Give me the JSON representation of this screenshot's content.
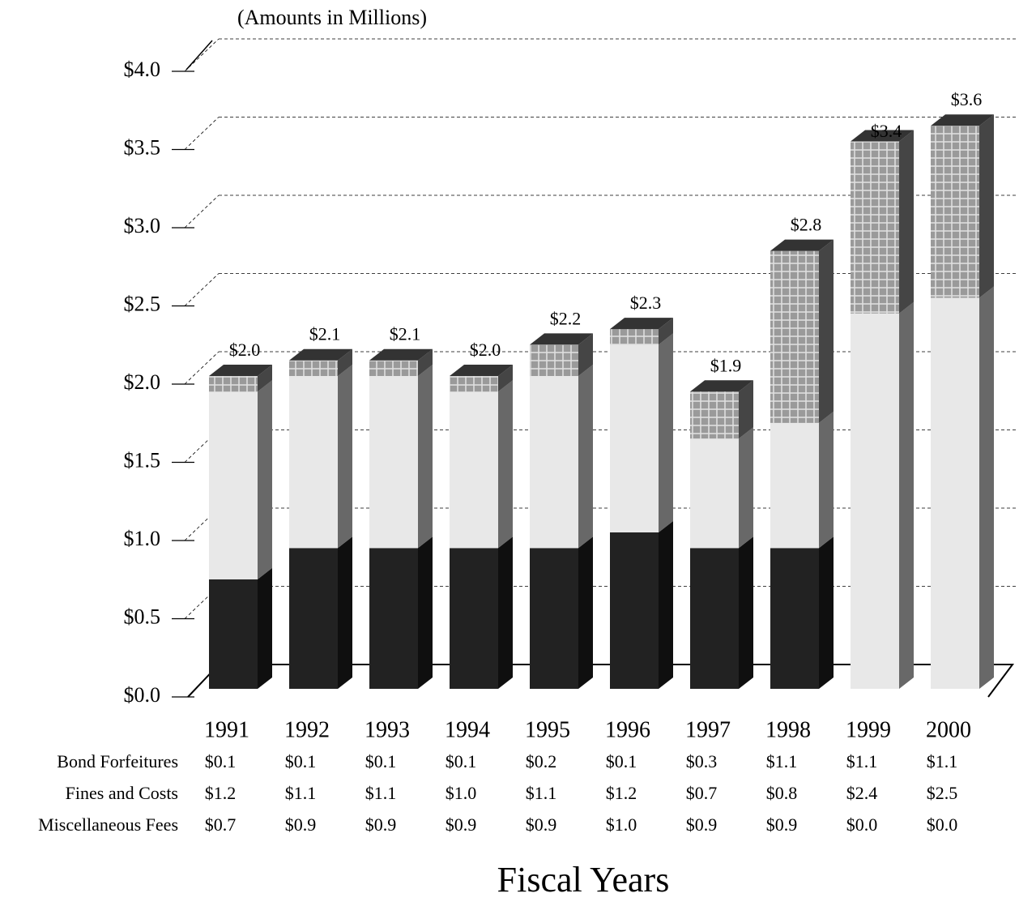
{
  "chart_data": {
    "type": "bar",
    "stacked": true,
    "subtitle": "(Amounts in Millions)",
    "x_label": "Fiscal Years",
    "categories": [
      "1991",
      "1992",
      "1993",
      "1994",
      "1995",
      "1996",
      "1997",
      "1998",
      "1999",
      "2000"
    ],
    "series": [
      {
        "name": "Miscellaneous Fees",
        "color": "#222222",
        "values": [
          0.7,
          0.9,
          0.9,
          0.9,
          0.9,
          1.0,
          0.9,
          0.9,
          0.0,
          0.0
        ],
        "value_labels": [
          "$0.7",
          "$0.9",
          "$0.9",
          "$0.9",
          "$0.9",
          "$1.0",
          "$0.9",
          "$0.9",
          "$0.0",
          "$0.0"
        ]
      },
      {
        "name": "Fines and Costs",
        "color": "#e8e8e8",
        "values": [
          1.2,
          1.1,
          1.1,
          1.0,
          1.1,
          1.2,
          0.7,
          0.8,
          2.4,
          2.5
        ],
        "value_labels": [
          "$1.2",
          "$1.1",
          "$1.1",
          "$1.0",
          "$1.1",
          "$1.2",
          "$0.7",
          "$0.8",
          "$2.4",
          "$2.5"
        ]
      },
      {
        "name": "Bond Forfeitures",
        "color": "#9a9a9a",
        "values": [
          0.1,
          0.1,
          0.1,
          0.1,
          0.2,
          0.1,
          0.3,
          1.1,
          1.1,
          1.1
        ],
        "value_labels": [
          "$0.1",
          "$0.1",
          "$0.1",
          "$0.1",
          "$0.2",
          "$0.1",
          "$0.3",
          "$1.1",
          "$1.1",
          "$1.1"
        ]
      }
    ],
    "totals": [
      2.0,
      2.1,
      2.1,
      2.0,
      2.2,
      2.3,
      1.9,
      2.8,
      3.4,
      3.6
    ],
    "totals_labels": [
      "$2.0",
      "$2.1",
      "$2.1",
      "$2.0",
      "$2.2",
      "$2.3",
      "$1.9",
      "$2.8",
      "$3.4",
      "$3.6"
    ],
    "ylim": [
      0,
      4
    ],
    "yticks": [
      {
        "value": 0,
        "label": "$0.0"
      },
      {
        "value": 0.5,
        "label": "$0.5"
      },
      {
        "value": 1,
        "label": "$1.0"
      },
      {
        "value": 1.5,
        "label": "$1.5"
      },
      {
        "value": 2,
        "label": "$2.0"
      },
      {
        "value": 2.5,
        "label": "$2.5"
      },
      {
        "value": 3,
        "label": "$3.0"
      },
      {
        "value": 3.5,
        "label": "$3.5"
      },
      {
        "value": 4,
        "label": "$4.0"
      }
    ],
    "grid": true
  }
}
